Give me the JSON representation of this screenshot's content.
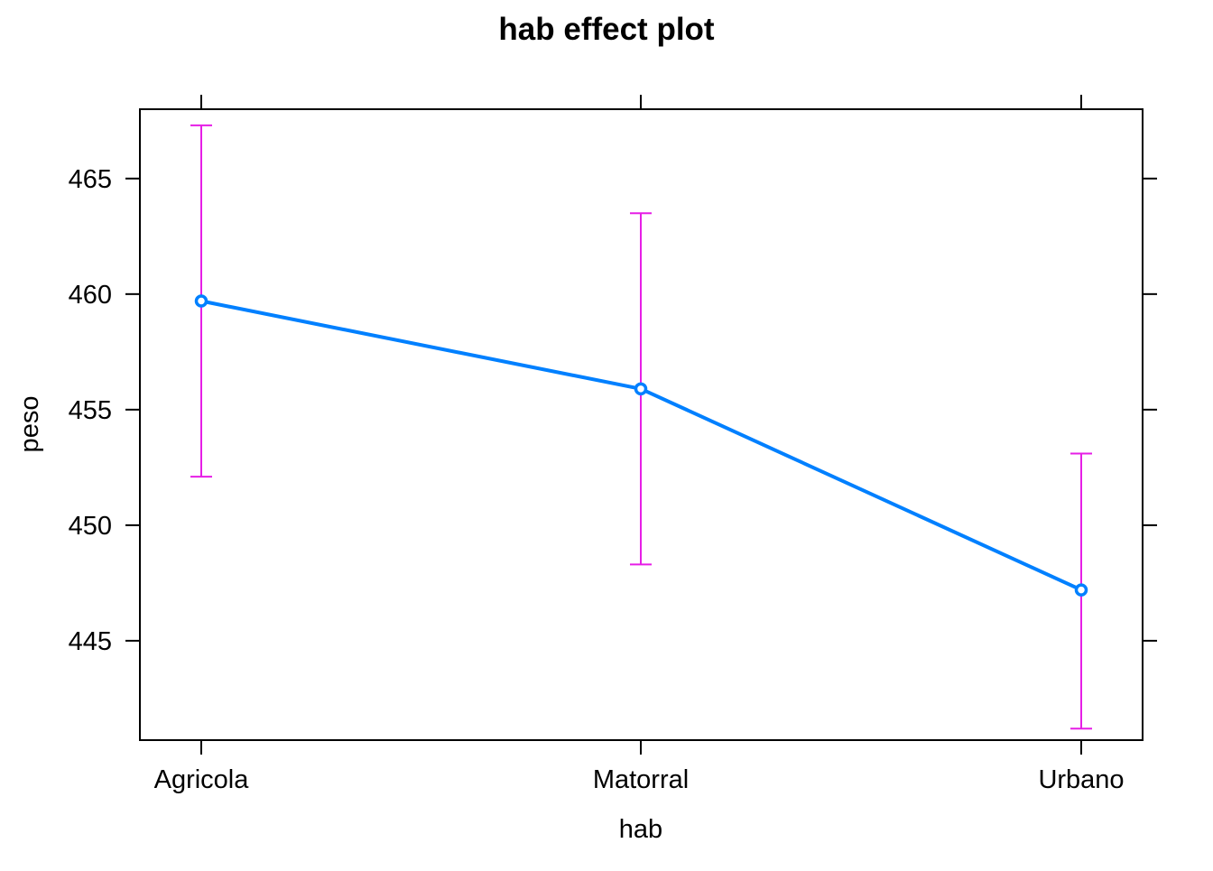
{
  "chart_data": {
    "type": "line",
    "title": "hab effect plot",
    "xlabel": "hab",
    "ylabel": "peso",
    "categories": [
      "Agricola",
      "Matorral",
      "Urbano"
    ],
    "series": [
      {
        "values": [
          459.7,
          455.9,
          447.2
        ],
        "lower": [
          452.1,
          448.3,
          441.2
        ],
        "upper": [
          467.3,
          463.5,
          453.1
        ]
      }
    ],
    "yticks": [
      445,
      450,
      455,
      460,
      465
    ],
    "ylim": [
      440.7,
      468.0
    ],
    "grid": false,
    "legend": "none",
    "colors": {
      "line": "#0080ff",
      "errorbar": "#e61ee6",
      "axis": "#000000"
    }
  }
}
